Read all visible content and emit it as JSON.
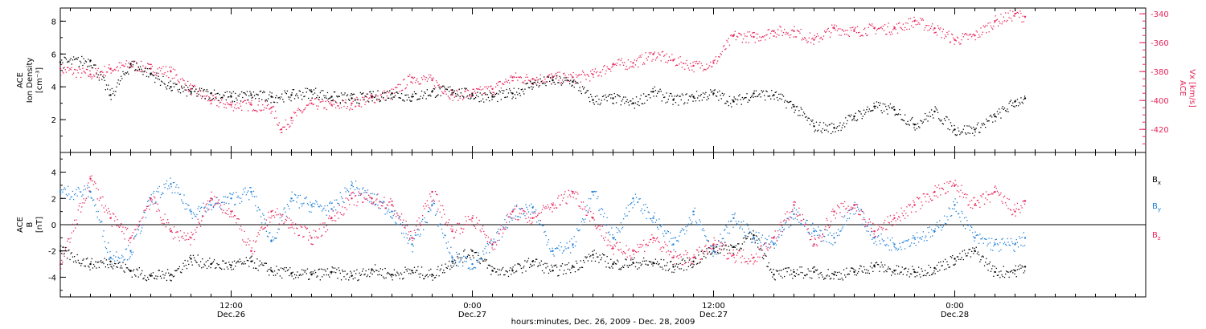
{
  "footer": {
    "xlabel": "hours:minutes, Dec. 26, 2009 - Dec. 28, 2009"
  },
  "x_ticks": [
    {
      "hour": 12,
      "time": "12:00",
      "date": "Dec.26"
    },
    {
      "hour": 24,
      "time": "0:00",
      "date": "Dec.27"
    },
    {
      "hour": 36,
      "time": "12:00",
      "date": "Dec.27"
    },
    {
      "hour": 48,
      "time": "0:00",
      "date": "Dec.28"
    }
  ],
  "colors": {
    "black": "#000000",
    "pink": "#e8245a",
    "blue": "#1e7fd8"
  },
  "chart_data": [
    {
      "type": "scatter",
      "panel": "top",
      "xlabel": "hours:minutes, Dec. 26, 2009 - Dec. 28, 2009",
      "xlim": [
        3.5,
        57.5
      ],
      "ylabel_lines": [
        "ACE",
        "Ion Density",
        "[cm⁻³]"
      ],
      "ylim": [
        0,
        8.8
      ],
      "yticks": [
        "2",
        "4",
        "6",
        "8"
      ],
      "ylabel_right_lines": [
        "ACE",
        "Vx [km/s]"
      ],
      "ylim_right": [
        -436,
        -336
      ],
      "yticks_right": [
        "-340",
        "-360",
        "-380",
        "-400",
        "-420"
      ],
      "series": [
        {
          "color": "#000000",
          "x": [
            3.5,
            5,
            6,
            7,
            8,
            9,
            10,
            11,
            12,
            13,
            14,
            15,
            16,
            17,
            18,
            19,
            20,
            21,
            22,
            23,
            24,
            25,
            26,
            27,
            28,
            29,
            30,
            31,
            32,
            33,
            34,
            35,
            36,
            37,
            38,
            39,
            40,
            41,
            42,
            43,
            44,
            45,
            46,
            47,
            48,
            49,
            50,
            51,
            51.5
          ],
          "values": [
            5.5,
            5.6,
            3.5,
            5.4,
            4.8,
            4.0,
            3.7,
            3.6,
            3.4,
            3.5,
            3.4,
            3.5,
            3.7,
            3.4,
            3.3,
            3.4,
            3.6,
            3.4,
            3.7,
            3.8,
            3.5,
            3.4,
            3.6,
            4.2,
            4.4,
            4.3,
            3.2,
            3.3,
            3.0,
            3.7,
            3.2,
            3.4,
            3.6,
            3.1,
            3.6,
            3.5,
            2.8,
            1.6,
            1.5,
            2.2,
            2.8,
            2.6,
            1.7,
            2.5,
            1.4,
            1.4,
            2.2,
            3.1,
            3.3
          ]
        },
        {
          "axis": "right",
          "color": "#e8245a",
          "x": [
            3.5,
            5,
            6,
            7,
            8,
            9,
            10,
            11,
            12,
            13,
            14,
            14.5,
            15,
            16,
            17,
            18,
            19,
            20,
            21,
            22,
            23,
            24,
            25,
            26,
            27,
            28,
            29,
            30,
            31,
            32,
            33,
            34,
            35,
            36,
            37,
            38,
            39,
            40,
            41,
            42,
            43,
            44,
            45,
            46,
            47,
            48,
            49,
            50,
            51,
            51.5
          ],
          "values": [
            -378,
            -382,
            -378,
            -375,
            -378,
            -380,
            -392,
            -400,
            -403,
            -403,
            -405,
            -420,
            -412,
            -402,
            -403,
            -402,
            -398,
            -395,
            -384,
            -386,
            -396,
            -395,
            -392,
            -384,
            -385,
            -384,
            -384,
            -382,
            -375,
            -374,
            -368,
            -372,
            -376,
            -374,
            -355,
            -356,
            -352,
            -352,
            -358,
            -350,
            -352,
            -350,
            -350,
            -345,
            -350,
            -358,
            -355,
            -345,
            -340,
            -342
          ]
        }
      ]
    },
    {
      "type": "scatter",
      "panel": "bottom",
      "xlim": [
        3.5,
        57.5
      ],
      "ylabel_lines": [
        "ACE",
        "B",
        "[nT]"
      ],
      "ylim": [
        -5.5,
        5.5
      ],
      "yticks": [
        "-4",
        "-2",
        "0",
        "2",
        "4"
      ],
      "zero_line": true,
      "series": [
        {
          "name": "B",
          "name_sub": "x",
          "color": "#000000",
          "x": [
            3.5,
            5,
            6,
            7,
            8,
            9,
            10,
            11,
            12,
            13,
            14,
            15,
            16,
            17,
            18,
            19,
            20,
            21,
            22,
            23,
            24,
            25,
            26,
            27,
            28,
            29,
            30,
            31,
            32,
            33,
            34,
            35,
            36,
            37,
            38,
            39,
            40,
            41,
            42,
            43,
            44,
            45,
            46,
            47,
            48,
            49,
            50,
            51,
            51.5
          ],
          "values": [
            -2.0,
            -3.0,
            -2.8,
            -3.5,
            -3.9,
            -3.8,
            -2.6,
            -3.0,
            -3.1,
            -2.8,
            -3.5,
            -3.7,
            -3.8,
            -3.6,
            -3.9,
            -3.4,
            -3.8,
            -3.5,
            -3.8,
            -2.8,
            -2.0,
            -3.5,
            -3.5,
            -2.8,
            -3.5,
            -3.2,
            -2.3,
            -3.0,
            -2.9,
            -2.9,
            -3.2,
            -2.8,
            -1.8,
            -1.7,
            -0.8,
            -3.8,
            -3.6,
            -3.6,
            -3.8,
            -3.6,
            -3.1,
            -3.5,
            -3.6,
            -3.3,
            -2.6,
            -2.0,
            -3.6,
            -3.5,
            -3.2
          ]
        },
        {
          "name": "B",
          "name_sub": "y",
          "color": "#1e7fd8",
          "x": [
            3.5,
            5,
            6,
            7,
            8,
            9,
            10,
            11,
            12,
            13,
            14,
            15,
            16,
            17,
            18,
            19,
            20,
            21,
            22,
            23,
            24,
            25,
            26,
            27,
            28,
            29,
            30,
            31,
            32,
            33,
            34,
            35,
            36,
            37,
            38,
            39,
            40,
            41,
            42,
            43,
            44,
            45,
            46,
            47,
            48,
            49,
            50,
            51,
            51.5
          ],
          "values": [
            2.5,
            2.5,
            -2.5,
            -2.0,
            2.0,
            3.1,
            1.0,
            1.5,
            2.0,
            2.5,
            -1.2,
            2.0,
            1.5,
            1.2,
            3.0,
            2.0,
            1.0,
            -1.5,
            1.5,
            -2.5,
            -3.0,
            -1.5,
            1.0,
            1.3,
            -2.0,
            -1.5,
            2.5,
            -1.0,
            2.0,
            0.5,
            -1.5,
            1.0,
            -2.0,
            0.5,
            -1.0,
            -1.5,
            0.8,
            -0.5,
            -1.0,
            1.5,
            -1.0,
            -1.5,
            -1.0,
            -0.5,
            1.5,
            -1.0,
            -1.5,
            -1.5,
            -1.0
          ]
        },
        {
          "name": "B",
          "name_sub": "z",
          "color": "#e8245a",
          "x": [
            3.5,
            5,
            6,
            7,
            8,
            9,
            10,
            11,
            12,
            13,
            14,
            15,
            16,
            17,
            18,
            19,
            20,
            21,
            22,
            23,
            24,
            25,
            26,
            27,
            28,
            29,
            30,
            31,
            32,
            33,
            34,
            35,
            36,
            37,
            38,
            39,
            40,
            41,
            42,
            43,
            44,
            45,
            46,
            47,
            48,
            49,
            50,
            51,
            51.5
          ],
          "values": [
            -3.0,
            3.5,
            0.5,
            -1.0,
            2.0,
            -0.5,
            -1.0,
            2.0,
            1.0,
            -2.0,
            1.0,
            0.0,
            -1.0,
            0.5,
            2.0,
            2.0,
            1.5,
            -1.0,
            2.5,
            -0.5,
            0.5,
            -1.5,
            1.0,
            0.5,
            1.5,
            2.5,
            0.5,
            -1.8,
            -2.0,
            -1.0,
            -2.5,
            -2.5,
            -1.5,
            -2.3,
            -2.5,
            -1.0,
            1.5,
            -1.5,
            1.0,
            1.5,
            -0.5,
            0.5,
            1.5,
            2.5,
            3.0,
            1.5,
            2.5,
            1.0,
            1.8
          ]
        }
      ]
    }
  ]
}
